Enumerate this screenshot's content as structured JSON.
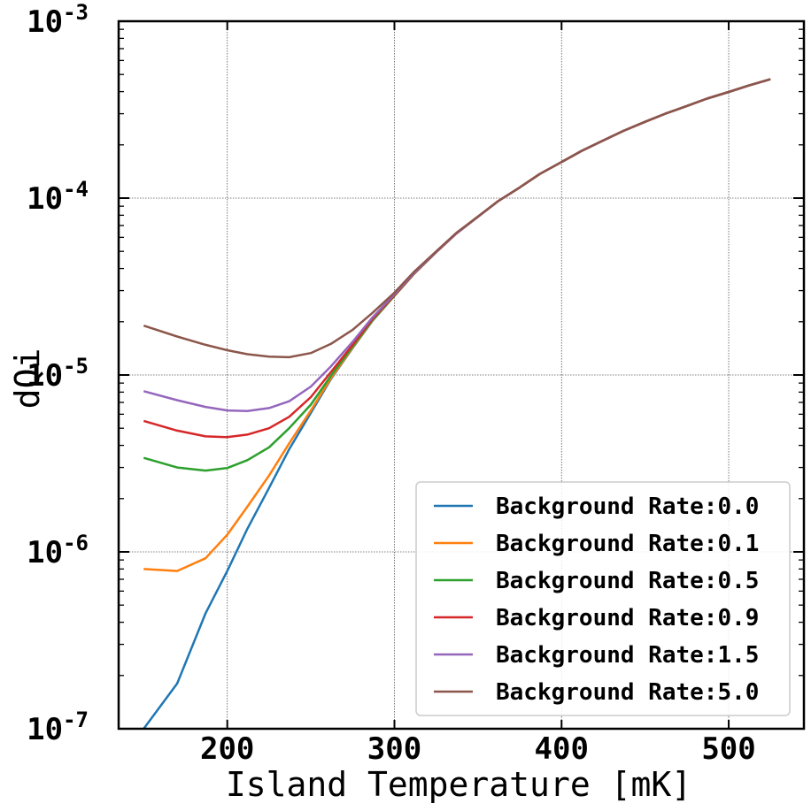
{
  "chart_data": {
    "type": "line",
    "xlabel": "Island Temperature [mK]",
    "ylabel": "dQi",
    "xlim": [
      135,
      545
    ],
    "ylim": [
      1e-07,
      0.001
    ],
    "yscale": "log",
    "grid": true,
    "legend_position": "lower-right",
    "x_ticks": [
      200,
      300,
      400,
      500
    ],
    "y_ticks": [
      {
        "value": 1e-07,
        "base": "10",
        "exp": "-7"
      },
      {
        "value": 1e-06,
        "base": "10",
        "exp": "-6"
      },
      {
        "value": 1e-05,
        "base": "10",
        "exp": "-5"
      },
      {
        "value": 0.0001,
        "base": "10",
        "exp": "-4"
      },
      {
        "value": 0.001,
        "base": "10",
        "exp": "-3"
      }
    ],
    "x": [
      150,
      170,
      187,
      200,
      212,
      225,
      237,
      250,
      262,
      275,
      287,
      300,
      312,
      325,
      337,
      350,
      362,
      375,
      387,
      400,
      412,
      425,
      437,
      450,
      462,
      475,
      487,
      500,
      512,
      525
    ],
    "series": [
      {
        "name": "Background Rate:0.0",
        "color": "#1f77b4",
        "values": [
          1e-07,
          1.8e-07,
          4.5e-07,
          7.8e-07,
          1.35e-06,
          2.3e-06,
          3.8e-06,
          6.1e-06,
          9.5e-06,
          1.42e-05,
          2.03e-05,
          2.8e-05,
          3.75e-05,
          4.95e-05,
          6.3e-05,
          7.85e-05,
          9.6e-05,
          0.000115,
          0.000137,
          0.00016,
          0.000185,
          0.000212,
          0.00024,
          0.00027,
          0.0003,
          0.000332,
          0.000365,
          0.000398,
          0.000433,
          0.00047
        ]
      },
      {
        "name": "Background Rate:0.1",
        "color": "#ff7f0e",
        "values": [
          8e-07,
          7.8e-07,
          9.2e-07,
          1.25e-06,
          1.8e-06,
          2.7e-06,
          4.1e-06,
          6.3e-06,
          9.6e-06,
          1.43e-05,
          2.04e-05,
          2.8e-05,
          3.75e-05,
          4.95e-05,
          6.3e-05,
          7.85e-05,
          9.6e-05,
          0.000115,
          0.000137,
          0.00016,
          0.000185,
          0.000212,
          0.00024,
          0.00027,
          0.0003,
          0.000332,
          0.000365,
          0.000398,
          0.000433,
          0.00047
        ]
      },
      {
        "name": "Background Rate:0.5",
        "color": "#2ca02c",
        "values": [
          3.4e-06,
          3e-06,
          2.88e-06,
          2.98e-06,
          3.3e-06,
          3.9e-06,
          5e-06,
          6.8e-06,
          9.9e-06,
          1.45e-05,
          2.05e-05,
          2.81e-05,
          3.76e-05,
          4.95e-05,
          6.3e-05,
          7.85e-05,
          9.6e-05,
          0.000115,
          0.000137,
          0.00016,
          0.000185,
          0.000212,
          0.00024,
          0.00027,
          0.0003,
          0.000332,
          0.000365,
          0.000398,
          0.000433,
          0.00047
        ]
      },
      {
        "name": "Background Rate:0.9",
        "color": "#d62728",
        "values": [
          5.5e-06,
          4.85e-06,
          4.5e-06,
          4.45e-06,
          4.6e-06,
          5e-06,
          5.8e-06,
          7.5e-06,
          1.04e-05,
          1.48e-05,
          2.08e-05,
          2.83e-05,
          3.77e-05,
          4.96e-05,
          6.3e-05,
          7.85e-05,
          9.6e-05,
          0.000115,
          0.000137,
          0.00016,
          0.000185,
          0.000212,
          0.00024,
          0.00027,
          0.0003,
          0.000332,
          0.000365,
          0.000398,
          0.000433,
          0.00047
        ]
      },
      {
        "name": "Background Rate:1.5",
        "color": "#9467bd",
        "values": [
          8.1e-06,
          7.2e-06,
          6.6e-06,
          6.3e-06,
          6.25e-06,
          6.5e-06,
          7.1e-06,
          8.6e-06,
          1.12e-05,
          1.54e-05,
          2.12e-05,
          2.86e-05,
          3.79e-05,
          4.97e-05,
          6.3e-05,
          7.85e-05,
          9.6e-05,
          0.000115,
          0.000137,
          0.00016,
          0.000185,
          0.000212,
          0.00024,
          0.00027,
          0.0003,
          0.000332,
          0.000365,
          0.000398,
          0.000433,
          0.00047
        ]
      },
      {
        "name": "Background Rate:5.0",
        "color": "#8c564b",
        "values": [
          1.9e-05,
          1.65e-05,
          1.48e-05,
          1.38e-05,
          1.31e-05,
          1.27e-05,
          1.26e-05,
          1.33e-05,
          1.5e-05,
          1.8e-05,
          2.25e-05,
          2.92e-05,
          3.85e-05,
          5e-05,
          6.35e-05,
          7.87e-05,
          9.6e-05,
          0.000115,
          0.000137,
          0.00016,
          0.000185,
          0.000212,
          0.00024,
          0.00027,
          0.0003,
          0.000332,
          0.000365,
          0.000398,
          0.000433,
          0.00047
        ]
      }
    ]
  }
}
